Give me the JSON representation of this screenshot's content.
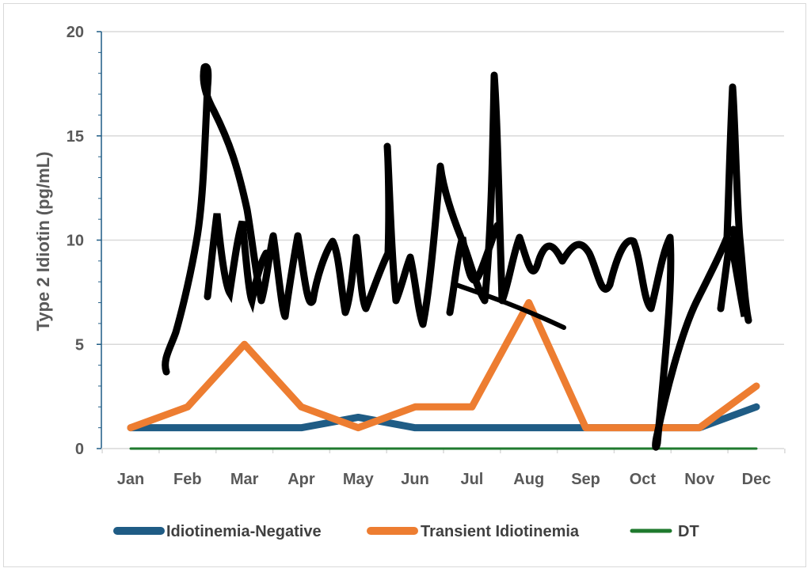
{
  "chart_data": {
    "type": "line",
    "title": "",
    "xlabel": "",
    "ylabel": "Type 2 Idiotin (pg/mL)",
    "categories": [
      "Jan",
      "Feb",
      "Mar",
      "Apr",
      "May",
      "Jun",
      "Jul",
      "Aug",
      "Sep",
      "Oct",
      "Nov",
      "Dec"
    ],
    "ylim": [
      0,
      20
    ],
    "yticks": [
      0,
      5,
      10,
      15,
      20
    ],
    "grid": true,
    "legend_position": "bottom",
    "series": [
      {
        "name": "Idiotinemia-Negative",
        "color": "#1f5c85",
        "values": [
          1,
          1,
          1,
          1,
          1.5,
          1,
          1,
          1,
          1,
          1,
          1,
          2
        ]
      },
      {
        "name": "Transient Idiotinemia",
        "color": "#ed7d31",
        "values": [
          1,
          2,
          5,
          2,
          1,
          2,
          2,
          7,
          1,
          1,
          1,
          3
        ]
      },
      {
        "name": "DT",
        "color": "#1f7a2e",
        "values": [
          0,
          0,
          0,
          0,
          0,
          0,
          0,
          0,
          0,
          0,
          0,
          0
        ]
      }
    ],
    "annotations": [
      {
        "type": "handwritten-signature-overlay",
        "color": "#000000"
      }
    ]
  }
}
